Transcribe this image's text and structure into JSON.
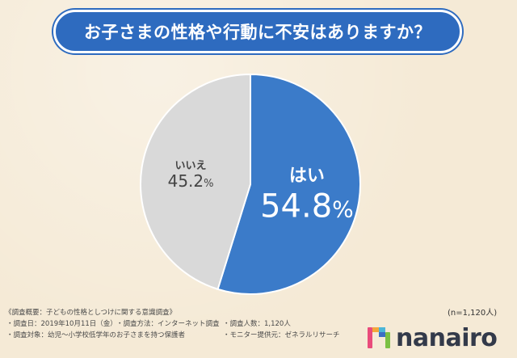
{
  "title": "お子さまの性格や行動に不安はありますか？",
  "chart_data": {
    "type": "pie",
    "slices": [
      {
        "label": "はい",
        "value_text": "54.8",
        "pct_sign": "%",
        "value": 54.8,
        "color": "#3b7bc9",
        "label_color": "#ffffff"
      },
      {
        "label": "いいえ",
        "value_text": "45.2",
        "pct_sign": "%",
        "value": 45.2,
        "color": "#d9d9d9",
        "label_color": "#444444"
      }
    ],
    "start": "12 o'clock",
    "direction": "clockwise"
  },
  "n_note": "(n=1,120人)",
  "survey": {
    "heading": "《調査概要：子どもの性格としつけに関する意識調査》",
    "date": "・調査日：2019年10月11日（金）",
    "method": "・調査方法：インターネット調査",
    "people": "・調査人数：1,120人",
    "target": "・調査対象：幼児～小学校低学年のお子さまを持つ保護者",
    "monitor": "・モニター提供元：ゼネラルリサーチ"
  },
  "logo": {
    "text": "nanairo",
    "colors": [
      "#e94b7b",
      "#f3a73b",
      "#4bb6d8",
      "#7bc043",
      "#3b6fc4"
    ]
  }
}
